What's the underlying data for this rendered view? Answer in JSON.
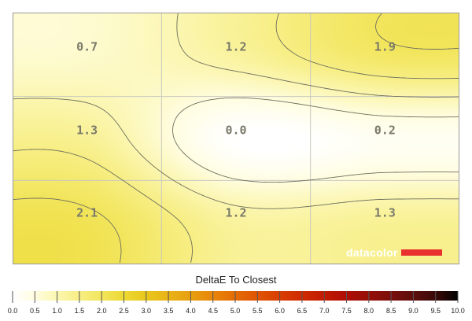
{
  "chart_data": {
    "type": "heatmap",
    "grid": true,
    "rows": 3,
    "cols": 3,
    "cells": [
      [
        0.7,
        1.2,
        1.9
      ],
      [
        1.3,
        0.0,
        0.2
      ],
      [
        2.1,
        1.2,
        1.3
      ]
    ],
    "cell_labels": [
      [
        "0.7",
        "1.2",
        "1.9"
      ],
      [
        "1.3",
        "0.0",
        "0.2"
      ],
      [
        "2.1",
        "1.2",
        "1.3"
      ]
    ],
    "contours": true,
    "legend": {
      "title": "DeltaE To Closest",
      "min": 0.0,
      "max": 10.0,
      "step": 0.5,
      "ticks": [
        "0.0",
        "0.5",
        "1.0",
        "1.5",
        "2.0",
        "2.5",
        "3.0",
        "3.5",
        "4.0",
        "4.5",
        "5.0",
        "5.5",
        "6.0",
        "6.5",
        "7.0",
        "7.5",
        "8.0",
        "8.5",
        "9.0",
        "9.5",
        "10.0"
      ],
      "colors": [
        "#ffffff",
        "#fffde0",
        "#fbf6b0",
        "#f7ee84",
        "#f2e55c",
        "#ecd933",
        "#e9c71c",
        "#e8b317",
        "#e89f10",
        "#e8860a",
        "#e46c06",
        "#e05404",
        "#d93e02",
        "#cf2b02",
        "#c21a02",
        "#ae0e04",
        "#951008",
        "#7a0f0b",
        "#5d0e0b",
        "#3a0a08",
        "#000000"
      ]
    },
    "watermark": {
      "text": "datacolor",
      "accent": "#e8312f"
    }
  }
}
